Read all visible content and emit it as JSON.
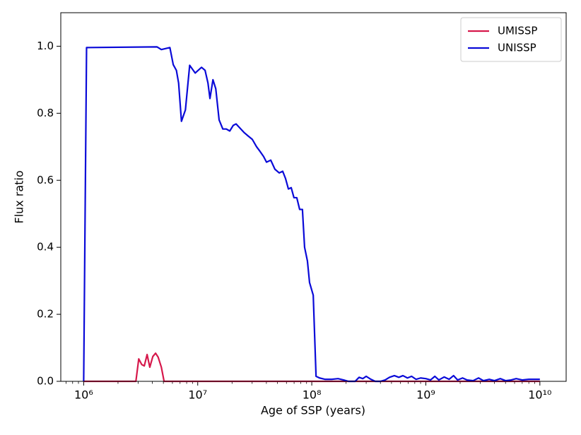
{
  "chart_data": {
    "type": "line",
    "xlabel": "Age of SSP (years)",
    "ylabel": "Flux ratio",
    "xscale": "log",
    "xlim": [
      630000,
      17000000000
    ],
    "ylim": [
      0,
      1.1
    ],
    "xticks": [
      {
        "value": 1000000,
        "label": "10⁶"
      },
      {
        "value": 10000000,
        "label": "10⁷"
      },
      {
        "value": 100000000,
        "label": "10⁸"
      },
      {
        "value": 1000000000,
        "label": "10⁹"
      },
      {
        "value": 10000000000,
        "label": "10¹⁰"
      }
    ],
    "xminorticks": [
      700000,
      800000,
      900000,
      2000000,
      3000000,
      4000000,
      5000000,
      6000000,
      7000000,
      8000000,
      9000000,
      20000000,
      30000000,
      40000000,
      50000000,
      60000000,
      70000000,
      80000000,
      90000000,
      200000000,
      300000000,
      400000000,
      500000000,
      600000000,
      700000000,
      800000000,
      900000000,
      2000000000,
      3000000000,
      4000000000,
      5000000000,
      6000000000,
      7000000000,
      8000000000,
      9000000000
    ],
    "yticks": [
      {
        "value": 0,
        "label": "0.0"
      },
      {
        "value": 0.2,
        "label": "0.2"
      },
      {
        "value": 0.4,
        "label": "0.4"
      },
      {
        "value": 0.6,
        "label": "0.6"
      },
      {
        "value": 0.8,
        "label": "0.8"
      },
      {
        "value": 1,
        "label": "1.0"
      }
    ],
    "legend": "upper right",
    "series": [
      {
        "name": "UMISSP",
        "color": "#d6184b",
        "x": [
          1000000,
          2870000,
          3040000,
          3230000,
          3400000,
          3600000,
          3800000,
          4040000,
          4270000,
          4500000,
          4800000,
          5070000,
          10000000000
        ],
        "values": [
          0,
          0,
          0.067,
          0.05,
          0.046,
          0.08,
          0.042,
          0.074,
          0.084,
          0.072,
          0.042,
          0,
          0
        ]
      },
      {
        "name": "UNISSP",
        "color": "#0a0ad8",
        "x": [
          1000000,
          1060000,
          4400000,
          4800000,
          5700000,
          6100000,
          6500000,
          6800000,
          7200000,
          7800000,
          8500000,
          9500000,
          10800000,
          11600000,
          12300000,
          12800000,
          13600000,
          14400000,
          15400000,
          16600000,
          17800000,
          19100000,
          20500000,
          21700000,
          25400000,
          27700000,
          30100000,
          32800000,
          35200000,
          37800000,
          40100000,
          43700000,
          47500000,
          51800000,
          55600000,
          58900000,
          62400000,
          66000000,
          69800000,
          73900000,
          78300000,
          82800000,
          86500000,
          91600000,
          95600000,
          103000000,
          109000000,
          117000000,
          131000000,
          150000000,
          170000000,
          190000000,
          210000000,
          240000000,
          260000000,
          280000000,
          300000000,
          330000000,
          360000000,
          400000000,
          440000000,
          480000000,
          530000000,
          580000000,
          630000000,
          690000000,
          750000000,
          820000000,
          900000000,
          1000000000,
          1100000000,
          1200000000,
          1300000000,
          1450000000,
          1600000000,
          1750000000,
          1900000000,
          2100000000,
          2300000000,
          2600000000,
          2900000000,
          3200000000,
          3600000000,
          4000000000,
          4500000000,
          5000000000,
          5600000000,
          6200000000,
          7000000000,
          8000000000,
          9000000000,
          10000000000
        ],
        "values": [
          0,
          0.996,
          0.998,
          0.99,
          0.996,
          0.945,
          0.928,
          0.89,
          0.776,
          0.81,
          0.943,
          0.92,
          0.937,
          0.928,
          0.89,
          0.844,
          0.9,
          0.873,
          0.78,
          0.753,
          0.753,
          0.747,
          0.764,
          0.768,
          0.743,
          0.732,
          0.722,
          0.7,
          0.686,
          0.671,
          0.654,
          0.66,
          0.633,
          0.622,
          0.627,
          0.605,
          0.574,
          0.578,
          0.548,
          0.548,
          0.513,
          0.513,
          0.4,
          0.359,
          0.295,
          0.257,
          0.015,
          0.01,
          0.006,
          0.006,
          0.008,
          0.004,
          0,
          0,
          0.012,
          0.008,
          0.015,
          0.006,
          0,
          0,
          0.004,
          0.012,
          0.017,
          0.012,
          0.017,
          0.01,
          0.015,
          0.006,
          0.01,
          0.008,
          0.004,
          0.015,
          0.004,
          0.013,
          0.006,
          0.017,
          0.004,
          0.01,
          0.004,
          0.002,
          0.01,
          0.002,
          0.006,
          0.002,
          0.008,
          0.002,
          0.004,
          0.008,
          0.004,
          0.006,
          0.006,
          0.006
        ]
      }
    ]
  }
}
